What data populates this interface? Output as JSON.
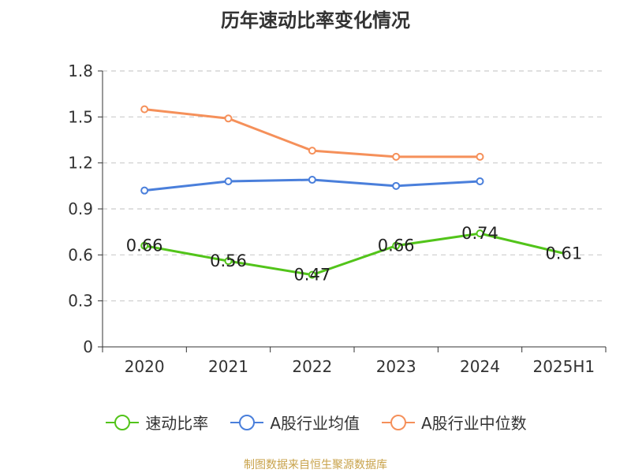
{
  "chart_data": {
    "type": "line",
    "title": "历年速动比率变化情况",
    "categories": [
      "2020",
      "2021",
      "2022",
      "2023",
      "2024",
      "2025H1"
    ],
    "y_ticks": [
      "0",
      "0.3",
      "0.6",
      "0.9",
      "1.2",
      "1.5",
      "1.8"
    ],
    "ylim": [
      0,
      1.8
    ],
    "grid": true,
    "legend_position": "bottom",
    "series": [
      {
        "name": "速动比率",
        "color": "#52c41a",
        "values": [
          0.66,
          0.56,
          0.47,
          0.66,
          0.74,
          0.61
        ],
        "labels": [
          "0.66",
          "0.56",
          "0.47",
          "0.66",
          "0.74",
          "0.61"
        ],
        "show_labels": true
      },
      {
        "name": "A股行业均值",
        "color": "#4a7fdb",
        "values": [
          1.02,
          1.08,
          1.09,
          1.05,
          1.08,
          null
        ],
        "show_labels": false
      },
      {
        "name": "A股行业中位数",
        "color": "#f5905a",
        "values": [
          1.55,
          1.49,
          1.28,
          1.24,
          1.24,
          null
        ],
        "show_labels": false
      }
    ]
  },
  "source_text": "制图数据来自恒生聚源数据库"
}
